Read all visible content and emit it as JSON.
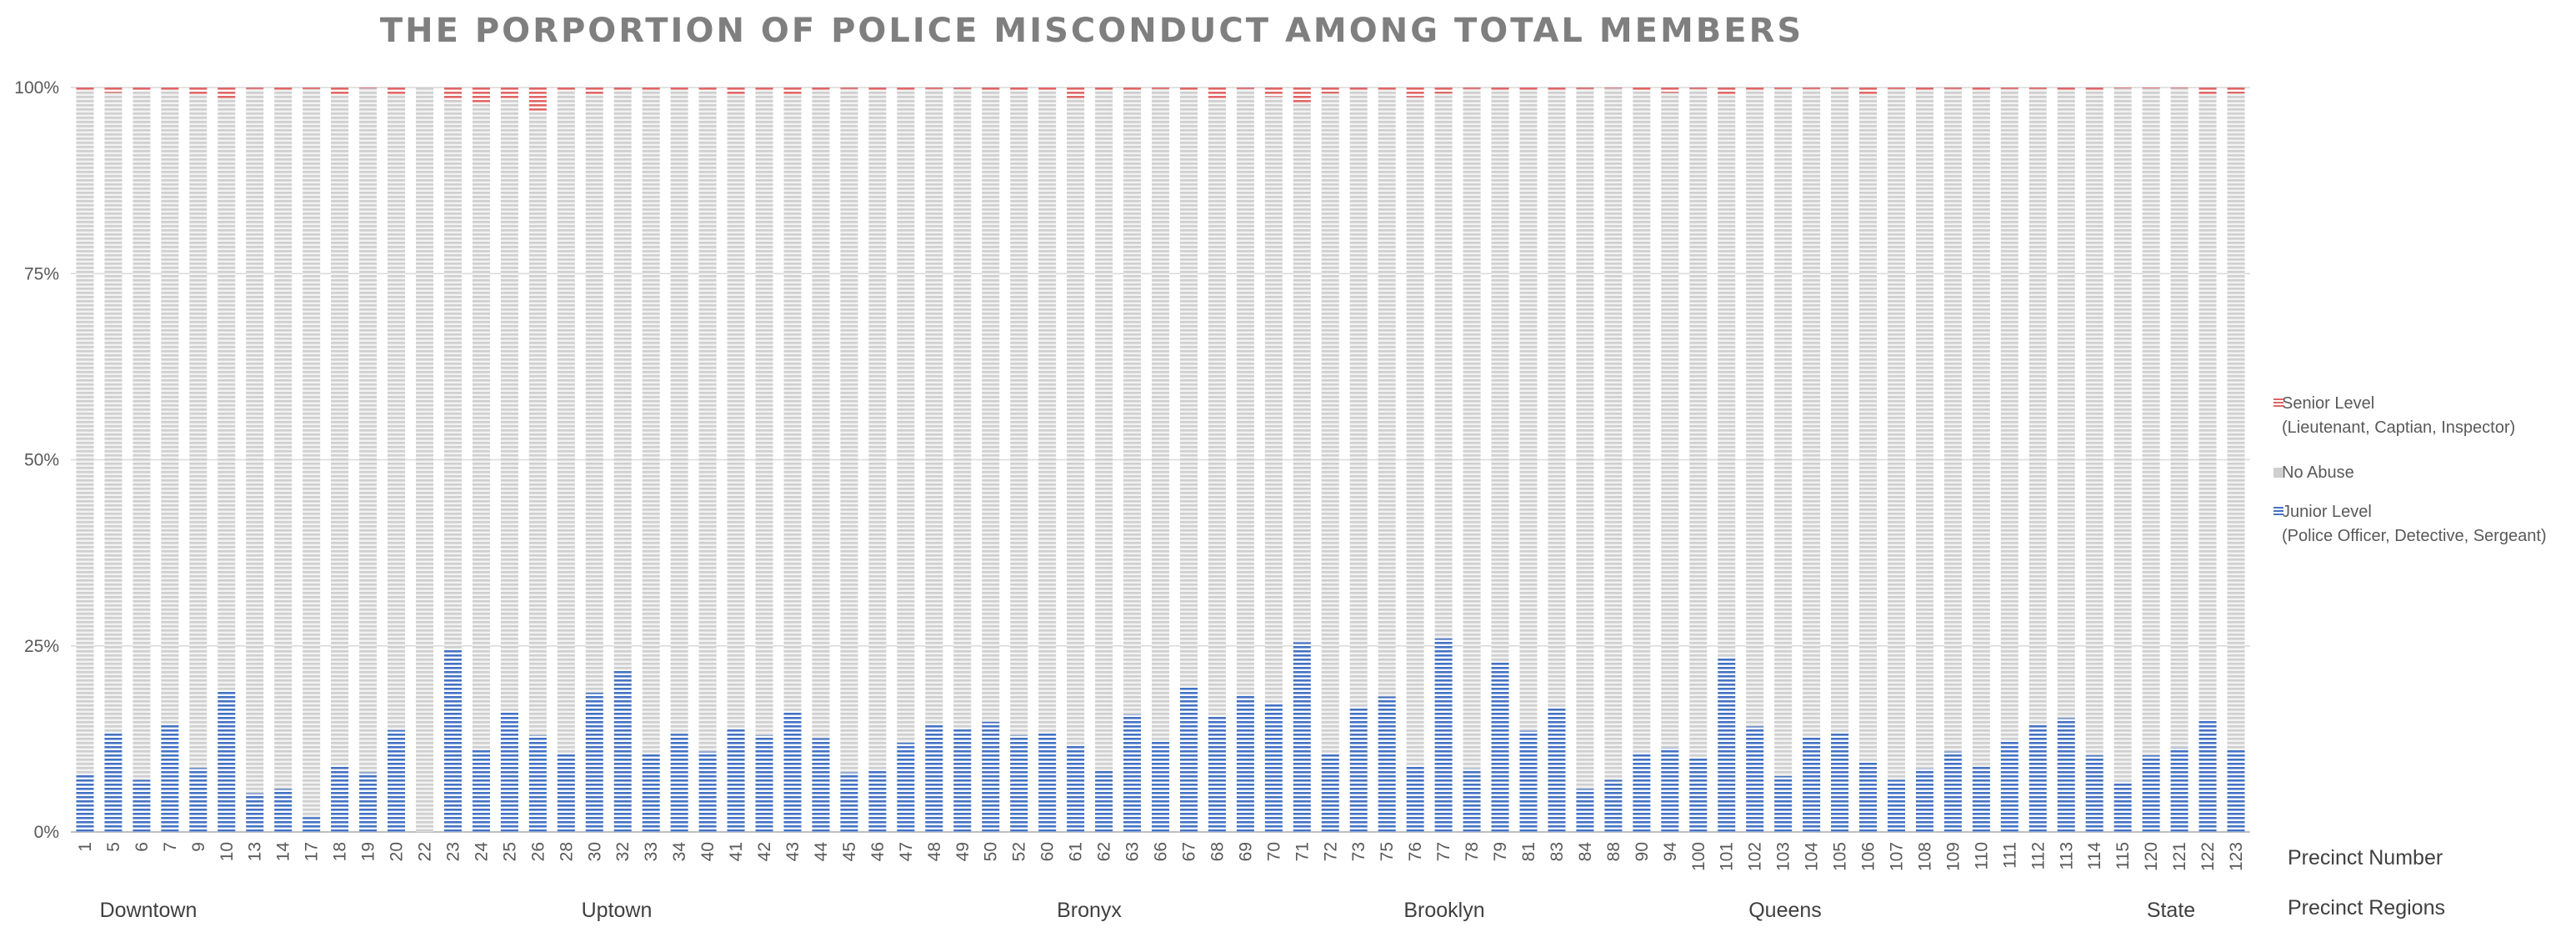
{
  "chart_data": {
    "type": "bar",
    "stacked": true,
    "percent": true,
    "title": "THE PORPORTION OF POLICE MISCONDUCT AMONG TOTAL MEMBERS",
    "ylim": [
      0,
      100
    ],
    "yticks": [
      "0%",
      "25%",
      "50%",
      "75%",
      "100%"
    ],
    "grid": true,
    "legend_position": "right",
    "categories": [
      "1",
      "5",
      "6",
      "7",
      "9",
      "10",
      "13",
      "14",
      "17",
      "18",
      "19",
      "20",
      "22",
      "23",
      "24",
      "25",
      "26",
      "28",
      "30",
      "32",
      "33",
      "34",
      "40",
      "41",
      "42",
      "43",
      "44",
      "45",
      "46",
      "47",
      "48",
      "49",
      "50",
      "52",
      "60",
      "61",
      "62",
      "63",
      "66",
      "67",
      "68",
      "69",
      "70",
      "71",
      "72",
      "73",
      "75",
      "76",
      "77",
      "78",
      "79",
      "81",
      "83",
      "84",
      "88",
      "90",
      "94",
      "100",
      "101",
      "102",
      "103",
      "104",
      "105",
      "106",
      "107",
      "108",
      "109",
      "110",
      "111",
      "112",
      "113",
      "114",
      "115",
      "120",
      "121",
      "122",
      "123"
    ],
    "series": [
      {
        "name": "Junior Level",
        "name_sub": "(Police Officer, Detective, Sergeant)",
        "color": "#4472c4",
        "values": [
          7.8,
          13.5,
          7,
          14.5,
          8.6,
          19,
          5.2,
          5.8,
          2,
          9,
          8,
          13.7,
          0,
          24.5,
          11,
          16.3,
          13,
          10.5,
          18.7,
          21.8,
          10.5,
          13.2,
          10.8,
          14,
          13,
          16.2,
          12.6,
          8,
          8.3,
          12,
          14.5,
          14,
          14.8,
          13,
          13.3,
          11.7,
          8.2,
          15.8,
          12.2,
          19.5,
          15.7,
          18.3,
          17.3,
          25.5,
          10.6,
          16.8,
          18.2,
          9,
          26,
          8.5,
          22.8,
          13.6,
          16.8,
          5.8,
          7,
          10.7,
          11.3,
          10,
          23.5,
          14.2,
          7.5,
          12.8,
          13.5,
          9.5,
          7,
          8.5,
          10.8,
          8.8,
          12.2,
          14.5,
          15.3,
          10.3,
          6.8,
          10.3,
          11.3,
          15,
          11
        ]
      },
      {
        "name": "No Abuse",
        "color": "#d9d9d9",
        "values": [
          91.9,
          85.8,
          92.5,
          85.2,
          90.5,
          79.6,
          94.6,
          93.9,
          97.8,
          90,
          91.9,
          85.4,
          100,
          73.8,
          86.9,
          82.1,
          83.7,
          89.1,
          80.3,
          77.8,
          89.2,
          86.5,
          88.8,
          85.1,
          86.7,
          82.9,
          87.1,
          91.8,
          91.3,
          87.7,
          85.3,
          85.8,
          84.8,
          86.6,
          86.3,
          86.9,
          91.4,
          83.8,
          87.6,
          80.1,
          82.7,
          81.5,
          81.5,
          72.5,
          88.6,
          82.9,
          81.5,
          89.7,
          73.2,
          91.3,
          76.9,
          86.1,
          82.9,
          94,
          92.9,
          88.9,
          88,
          89.8,
          75.6,
          85.5,
          92.3,
          87.0,
          86.3,
          89.6,
          92.8,
          91.2,
          89.0,
          90.9,
          87.6,
          85.3,
          84.4,
          89.4,
          93.1,
          89.6,
          88.6,
          84.1,
          88.2
        ]
      },
      {
        "name": "Senior Level",
        "name_sub": "(Lieutenant, Captian, Inspector)",
        "color": "#e06666",
        "values": [
          0.3,
          0.7,
          0.5,
          0.3,
          0.9,
          1.4,
          0.2,
          0.3,
          0.2,
          1,
          0.1,
          0.9,
          0,
          1.7,
          2.1,
          1.6,
          3.3,
          0.4,
          1,
          0.4,
          0.3,
          0.3,
          0.4,
          0.9,
          0.3,
          0.9,
          0.3,
          0.2,
          0.4,
          0.3,
          0.2,
          0.2,
          0.4,
          0.4,
          0.4,
          1.4,
          0.4,
          0.4,
          0.2,
          0.4,
          1.6,
          0.2,
          1.2,
          2,
          0.8,
          0.3,
          0.3,
          1.3,
          0.8,
          0.2,
          0.3,
          0.3,
          0.3,
          0.2,
          0.1,
          0.4,
          0.7,
          0.2,
          0.9,
          0.3,
          0.2,
          0.2,
          0.2,
          0.9,
          0.2,
          0.3,
          0.2,
          0.3,
          0.2,
          0.2,
          0.3,
          0.3,
          0.1,
          0.1,
          0.1,
          0.9,
          0.8
        ]
      }
    ],
    "x_axis_title": "Precinct Number",
    "groups_axis_title": "Precinct Regions",
    "groups": [
      {
        "name": "Downtown",
        "from": "1",
        "to": "20"
      },
      {
        "name": "Uptown",
        "from": "22",
        "to": "34"
      },
      {
        "name": "Bronyx",
        "from": "40",
        "to": "52"
      },
      {
        "name": "Brooklyn",
        "from": "60",
        "to": "94"
      },
      {
        "name": "Queens",
        "from": "100",
        "to": "115"
      },
      {
        "name": "State",
        "from": "120",
        "to": "123"
      }
    ]
  }
}
